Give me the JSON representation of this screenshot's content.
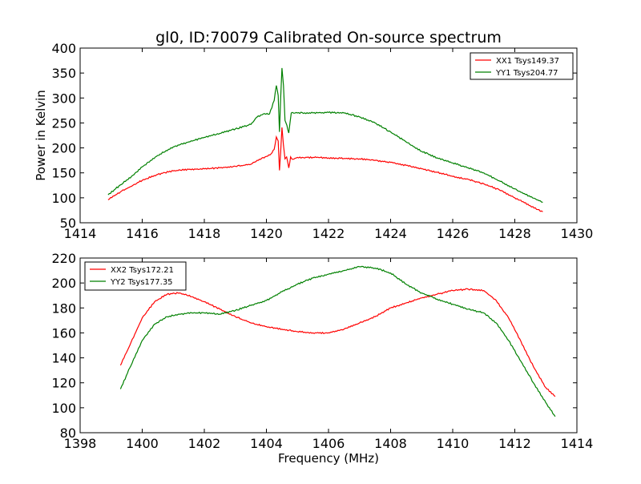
{
  "title": "gl0, ID:70079 Calibrated On-source spectrum",
  "chart_data": [
    {
      "type": "line",
      "ylabel": "Power in Kelvin",
      "xlabel": "",
      "xlim": [
        1414,
        1430
      ],
      "ylim": [
        50,
        400
      ],
      "xticks": [
        1414,
        1416,
        1418,
        1420,
        1422,
        1424,
        1426,
        1428,
        1430
      ],
      "yticks": [
        50,
        100,
        150,
        200,
        250,
        300,
        350,
        400
      ],
      "legend": "top-right",
      "series": [
        {
          "name": "XX1 Tsys149.37",
          "color": "#ff0000",
          "x": [
            1414.9,
            1415.3,
            1415.7,
            1416.0,
            1416.5,
            1417.0,
            1417.5,
            1418.0,
            1418.5,
            1419.0,
            1419.5,
            1419.7,
            1420.0,
            1420.15,
            1420.25,
            1420.32,
            1420.38,
            1420.42,
            1420.46,
            1420.5,
            1420.55,
            1420.6,
            1420.65,
            1420.72,
            1420.78,
            1420.85,
            1421.0,
            1421.5,
            1422.0,
            1422.5,
            1423.0,
            1423.5,
            1424.0,
            1424.5,
            1425.0,
            1425.5,
            1426.0,
            1426.5,
            1427.0,
            1427.5,
            1428.0,
            1428.5,
            1428.9
          ],
          "y": [
            96,
            112,
            125,
            135,
            147,
            154,
            157,
            158,
            160,
            163,
            167,
            175,
            183,
            188,
            197,
            222,
            214,
            155,
            192,
            241,
            205,
            178,
            182,
            160,
            182,
            177,
            181,
            181,
            180,
            179,
            178,
            175,
            171,
            165,
            158,
            151,
            143,
            137,
            128,
            116,
            100,
            84,
            72
          ]
        },
        {
          "name": "YY1 Tsys204.77",
          "color": "#008000",
          "x": [
            1414.9,
            1415.3,
            1415.7,
            1416.0,
            1416.5,
            1417.0,
            1417.5,
            1418.0,
            1418.5,
            1419.0,
            1419.5,
            1419.7,
            1419.9,
            1420.1,
            1420.25,
            1420.32,
            1420.38,
            1420.42,
            1420.46,
            1420.5,
            1420.55,
            1420.6,
            1420.66,
            1420.72,
            1420.8,
            1421.0,
            1421.5,
            1422.0,
            1422.5,
            1423.0,
            1423.5,
            1424.0,
            1424.5,
            1425.0,
            1425.5,
            1426.0,
            1426.5,
            1427.0,
            1427.5,
            1428.0,
            1428.5,
            1428.9
          ],
          "y": [
            106,
            126,
            145,
            162,
            185,
            202,
            212,
            221,
            229,
            238,
            247,
            262,
            268,
            268,
            295,
            325,
            305,
            232,
            300,
            360,
            325,
            255,
            245,
            230,
            270,
            270,
            270,
            271,
            270,
            262,
            250,
            232,
            212,
            193,
            180,
            170,
            160,
            150,
            134,
            118,
            102,
            91
          ]
        }
      ]
    },
    {
      "type": "line",
      "xlabel": "Frequency (MHz)",
      "ylabel": "",
      "xlim": [
        1398,
        1414
      ],
      "ylim": [
        80,
        220
      ],
      "xticks": [
        1398,
        1400,
        1402,
        1404,
        1406,
        1408,
        1410,
        1412,
        1414
      ],
      "yticks": [
        80,
        100,
        120,
        140,
        160,
        180,
        200,
        220
      ],
      "legend": "top-left",
      "series": [
        {
          "name": "XX2 Tsys172.21",
          "color": "#ff0000",
          "x": [
            1399.3,
            1399.6,
            1400.0,
            1400.4,
            1400.8,
            1401.2,
            1401.6,
            1402.0,
            1402.5,
            1403.0,
            1403.5,
            1404.0,
            1404.5,
            1405.0,
            1405.5,
            1406.0,
            1406.5,
            1407.0,
            1407.5,
            1408.0,
            1408.5,
            1409.0,
            1409.5,
            1410.0,
            1410.5,
            1411.0,
            1411.4,
            1411.8,
            1412.2,
            1412.6,
            1413.0,
            1413.3
          ],
          "y": [
            134,
            150,
            172,
            185,
            191,
            192,
            189,
            185,
            179,
            173,
            168,
            165,
            163,
            161,
            160,
            160,
            163,
            168,
            173,
            180,
            184,
            188,
            191,
            194,
            195,
            194,
            186,
            172,
            153,
            133,
            116,
            109
          ]
        },
        {
          "name": "YY2 Tsys177.35",
          "color": "#008000",
          "x": [
            1399.3,
            1399.6,
            1400.0,
            1400.4,
            1400.8,
            1401.2,
            1401.6,
            1402.0,
            1402.5,
            1403.0,
            1403.5,
            1404.0,
            1404.5,
            1405.0,
            1405.5,
            1406.0,
            1406.5,
            1407.0,
            1407.5,
            1408.0,
            1408.5,
            1409.0,
            1409.5,
            1410.0,
            1410.5,
            1411.0,
            1411.4,
            1411.8,
            1412.2,
            1412.6,
            1413.0,
            1413.3
          ],
          "y": [
            115,
            132,
            154,
            167,
            173,
            175,
            176,
            176,
            175,
            178,
            182,
            186,
            193,
            199,
            204,
            207,
            210,
            213,
            212,
            208,
            199,
            192,
            187,
            183,
            179,
            176,
            168,
            154,
            137,
            120,
            104,
            93
          ]
        }
      ]
    }
  ]
}
